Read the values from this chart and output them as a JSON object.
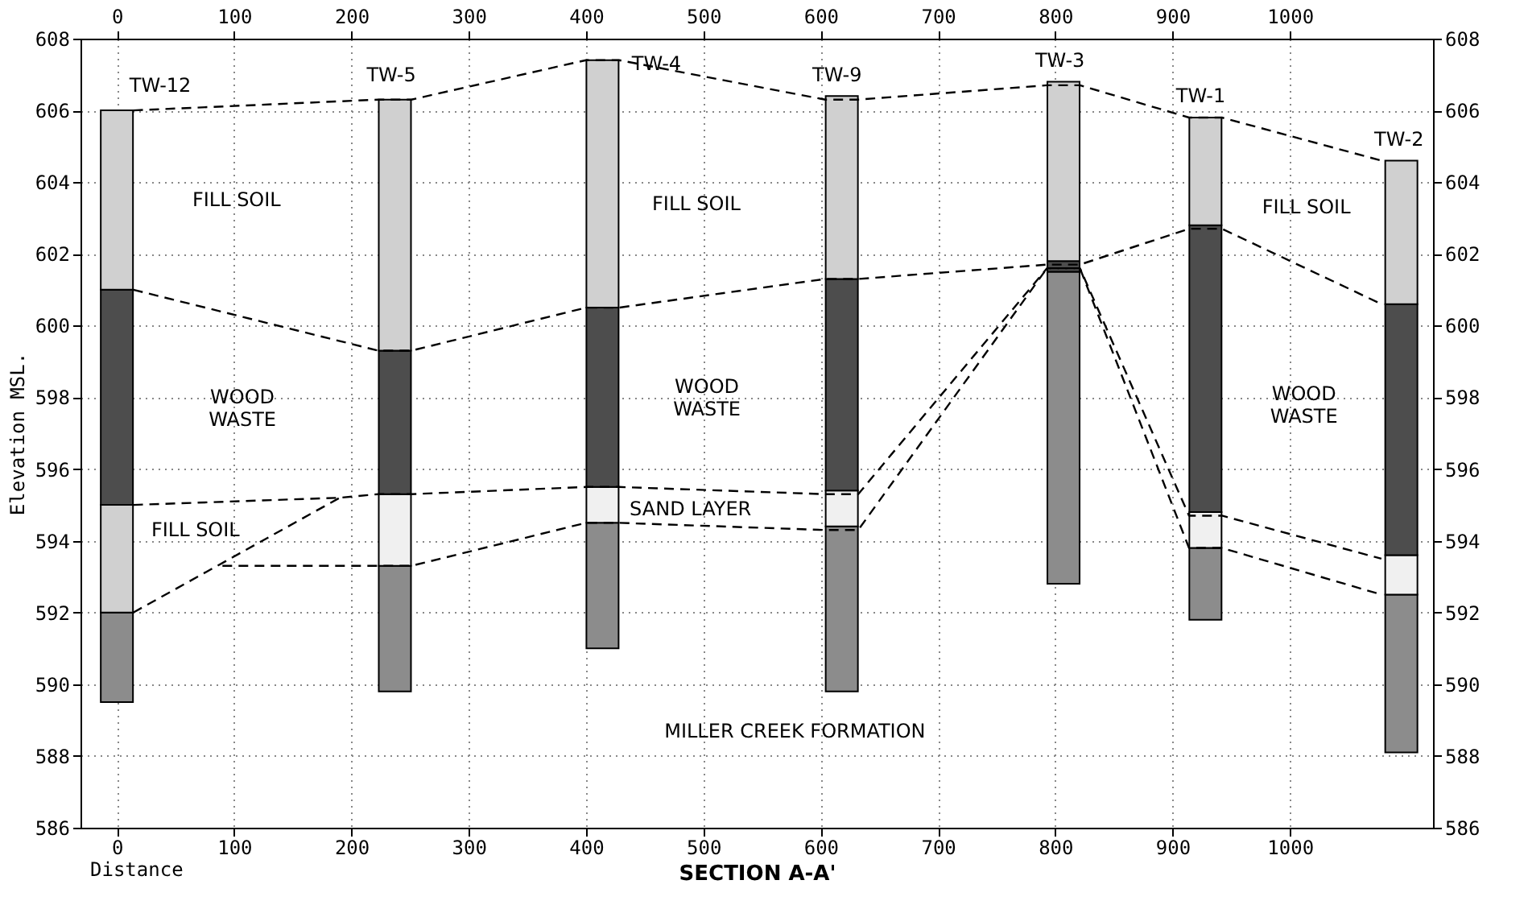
{
  "chart_data": {
    "type": "bar",
    "xlabel": "SECTION A-A'",
    "ylabel": "Elevation MSL.",
    "grid": true,
    "x": [
      0,
      237,
      414,
      618,
      807,
      928,
      1095
    ],
    "series": [
      {
        "colors": [
          "#8c8c8c",
          "#8c8c8c",
          "#8c8c8c",
          "#8c8c8c",
          "#8c8c8c",
          "#8c8c8c",
          "#8c8c8c"
        ],
        "base": [
          589.5,
          589.8,
          591.0,
          589.8,
          592.8,
          591.8,
          588.1
        ],
        "values": [
          2.5,
          3.5,
          3.5,
          4.6,
          8.7,
          2.0,
          4.4
        ]
      },
      {
        "colors": [
          "#d0d0d0",
          "#f0f0f0",
          "#f0f0f0",
          "#f0f0f0",
          null,
          "#f0f0f0",
          "#f0f0f0"
        ],
        "base": [
          592.0,
          593.3,
          594.5,
          594.4,
          null,
          593.8,
          592.5
        ],
        "values": [
          3.0,
          2.0,
          1.0,
          1.0,
          null,
          1.0,
          1.1
        ]
      },
      {
        "colors": [
          "#4d4d4d",
          "#4d4d4d",
          "#4d4d4d",
          "#4d4d4d",
          "#4d4d4d",
          "#4d4d4d",
          "#4d4d4d"
        ],
        "base": [
          595.0,
          595.3,
          595.5,
          595.4,
          601.5,
          594.8,
          593.6
        ],
        "values": [
          6.0,
          4.0,
          5.0,
          5.9,
          0.3,
          8.0,
          7.0
        ]
      },
      {
        "colors": [
          "#d0d0d0",
          "#d0d0d0",
          "#d0d0d0",
          "#d0d0d0",
          "#d0d0d0",
          "#d0d0d0",
          "#d0d0d0"
        ],
        "base": [
          601.0,
          599.3,
          600.5,
          601.3,
          601.8,
          602.8,
          600.6
        ],
        "values": [
          5.0,
          7.0,
          6.9,
          5.1,
          5.0,
          3.0,
          4.0
        ]
      },
      {
        "type": "line",
        "color": "#000000",
        "line_style": "dashed",
        "x": [
          14,
          223,
          251,
          400,
          428,
          604,
          632,
          793,
          821,
          914,
          942,
          1078
        ],
        "values": [
          606,
          606.3,
          606.3,
          607.4,
          607.4,
          606.3,
          606.3,
          606.7,
          606.7,
          605.8,
          605.8,
          604.6
        ]
      },
      {
        "type": "line",
        "color": "#000000",
        "line_style": "dashed",
        "x": [
          14,
          223,
          251,
          400,
          428,
          604,
          632,
          793,
          821,
          914,
          942,
          1078
        ],
        "values": [
          601,
          599.3,
          599.3,
          600.5,
          600.5,
          601.3,
          601.3,
          601.7,
          601.7,
          602.7,
          602.7,
          600.6
        ]
      },
      {
        "type": "line",
        "color": "#000000",
        "line_style": "dashed",
        "x": [
          14,
          190,
          223,
          251,
          400,
          428,
          604,
          632,
          793,
          821,
          914,
          942,
          1078
        ],
        "values": [
          595,
          595.2,
          595.3,
          595.3,
          595.5,
          595.5,
          595.3,
          595.3,
          601.6,
          601.6,
          594.7,
          594.7,
          593.5
        ]
      },
      {
        "type": "line",
        "color": "#000000",
        "line_style": "dashed",
        "x": [
          14,
          190
        ],
        "values": [
          592,
          595.2
        ]
      },
      {
        "type": "line",
        "color": "#000000",
        "line_style": "dashed",
        "x": [
          90,
          223,
          251,
          400,
          428,
          604,
          632,
          793,
          821,
          914,
          942,
          1078
        ],
        "values": [
          593.3,
          593.3,
          593.3,
          594.5,
          594.5,
          594.3,
          594.3,
          601.6,
          601.6,
          593.8,
          593.8,
          592.5
        ]
      }
    ],
    "xlim": [
      -31,
      1122
    ],
    "xticks": [
      0,
      100,
      200,
      300,
      400,
      500,
      600,
      700,
      800,
      900,
      1000
    ],
    "x2lim": [
      -31,
      1122
    ],
    "x2ticks": [
      0,
      100,
      200,
      300,
      400,
      500,
      600,
      700,
      800,
      900,
      1000
    ],
    "ylim": [
      586,
      608
    ],
    "yticks": [
      586,
      588,
      590,
      592,
      594,
      596,
      598,
      600,
      602,
      604,
      606,
      608
    ],
    "y2lim": [
      586,
      608
    ],
    "y2ticks": [
      586,
      588,
      590,
      592,
      594,
      596,
      598,
      600,
      602,
      604,
      606,
      608
    ],
    "annotations": [
      "TW-12",
      "TW-5",
      "TW-4",
      "TW-9",
      "TW-3",
      "TW-1",
      "TW-2",
      "FILL SOIL",
      "WOOD\nWASTE",
      "FILL SOIL",
      "FILL SOIL",
      "WOOD\nWASTE",
      "SAND LAYER",
      "FILL SOIL",
      "WOOD\nWASTE",
      "MILLER CREEK FORMATION",
      "Distance"
    ]
  }
}
